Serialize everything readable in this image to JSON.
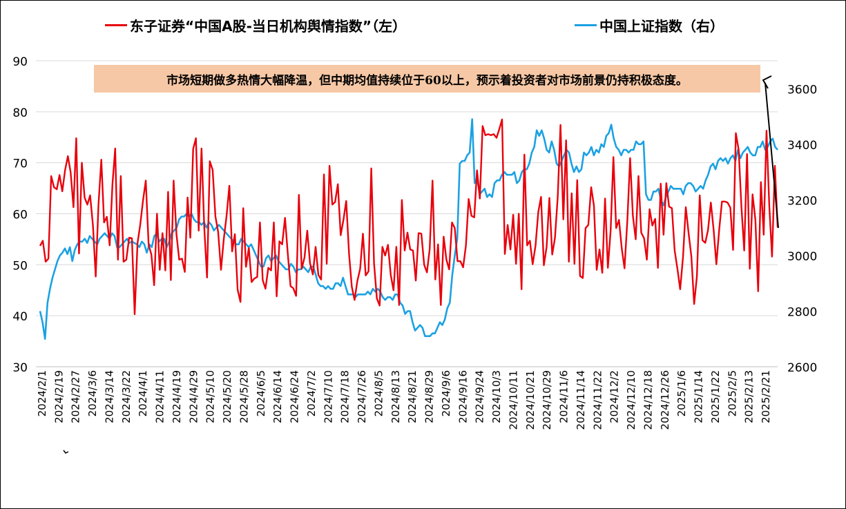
{
  "colors": {
    "series1": "#e8000b",
    "series2": "#1ba1e2",
    "background": "#ffffff",
    "annotation_bg": "#f6c8a6",
    "grid": "#d9d9d9"
  },
  "annotation": {
    "text": "市场短期做多热情大幅降温，但中期均值持续位于60以上，预示着投资者对市场前景仍持积极态度。"
  },
  "chart_data": {
    "type": "line",
    "title": "",
    "legend": {
      "placement": "top",
      "entries": [
        "东子证券“中国A股-当日机构舆情指数”（左）",
        "中国上证指数（右）"
      ]
    },
    "x_tick_labels": [
      "2024/2/1",
      "2024/2/19",
      "2024/2/27",
      "2024/3/6",
      "2024/3/14",
      "2024/3/22",
      "2024/4/1",
      "2024/4/11",
      "2024/4/19",
      "2024/4/29",
      "2024/5/10",
      "2024/5/20",
      "2024/5/28",
      "2024/6/5",
      "2024/6/14",
      "2024/6/24",
      "2024/7/2",
      "2024/7/10",
      "2024/7/18",
      "2024/7/26",
      "2024/8/5",
      "2024/8/13",
      "2024/8/21",
      "2024/8/29",
      "2024/9/6",
      "2024/9/16",
      "2024/9/24",
      "2024/10/3",
      "2024/10/11",
      "2024/10/21",
      "2024/10/29",
      "2024/11/6",
      "2024/11/14",
      "2024/11/22",
      "2024/12/2",
      "2024/12/10",
      "2024/12/18",
      "2024/12/26",
      "2025/1/6",
      "2025/1/14",
      "2025/1/22",
      "2025/2/5",
      "2025/2/13",
      "2025/2/21"
    ],
    "y_left": {
      "ticks": [
        30,
        40,
        50,
        60,
        70,
        80,
        90
      ],
      "range": [
        30,
        90
      ]
    },
    "y_right": {
      "ticks": [
        2600,
        2800,
        3000,
        3200,
        3400,
        3600
      ],
      "range": [
        2600,
        3700
      ]
    },
    "grid": true,
    "series": [
      {
        "name": "东子证券“中国A股-当日机构舆情指数”（左）",
        "axis": "left",
        "values": [
          53.7,
          54.7,
          50.6,
          51.2,
          67.4,
          65.2,
          64.8,
          67.6,
          64.4,
          68.6,
          71.3,
          68.1,
          61.3,
          74.8,
          52.2,
          70.0,
          63.2,
          61.8,
          63.6,
          57.7,
          47.7,
          61.8,
          70.6,
          58.3,
          59.4,
          53.8,
          65.7,
          72.8,
          51.0,
          67.4,
          50.6,
          51.0,
          55.3,
          55.2,
          40.3,
          54.2,
          57.9,
          62.6,
          66.5,
          53.9,
          52.0,
          46.0,
          60.0,
          49.0,
          56.2,
          48.9,
          64.3,
          47.0,
          66.5,
          56.0,
          51.0,
          51.2,
          48.6,
          63.2,
          55.3,
          72.7,
          74.8,
          56.7,
          72.8,
          57.2,
          47.5,
          70.3,
          68.6,
          59.5,
          56.4,
          49.0,
          55.0,
          59.5,
          65.5,
          52.6,
          56.0,
          45.1,
          42.7,
          61.1,
          49.6,
          53.3,
          46.6,
          47.3,
          47.6,
          58.3,
          47.0,
          45.3,
          49.4,
          48.9,
          58.3,
          43.8,
          54.6,
          54.0,
          59.2,
          52.2,
          45.8,
          45.4,
          43.9,
          63.7,
          49.2,
          51.4,
          56.7,
          50.3,
          48.1,
          53.5,
          48.0,
          47.1,
          67.7,
          50.2,
          69.4,
          61.8,
          62.3,
          65.8,
          55.8,
          58.8,
          62.5,
          52.2,
          45.7,
          43.1,
          46.8,
          49.2,
          56.1,
          47.9,
          48.7,
          68.9,
          50.3,
          43.4,
          42.0,
          53.5,
          51.8,
          53.9,
          48.0,
          45.0,
          53.5,
          42.1,
          62.7,
          52.8,
          56.3,
          53.0,
          52.8,
          46.9,
          56.2,
          56.1,
          50.0,
          48.5,
          53.1,
          66.5,
          47.1,
          54.0,
          42.1,
          55.5,
          51.0,
          49.1,
          58.3,
          57.2,
          50.7,
          50.7,
          49.5,
          53.7,
          62.9,
          59.6,
          59.3,
          68.5,
          63.0,
          77.2,
          75.4,
          75.6,
          75.4,
          75.6,
          74.9,
          76.6,
          78.5,
          52.1,
          57.8,
          53.0,
          59.8,
          50.2,
          60.0,
          45.2,
          71.6,
          53.8,
          54.7,
          50.1,
          53.7,
          60.3,
          63.3,
          49.9,
          53.5,
          63.1,
          52.0,
          55.3,
          63.3,
          77.4,
          58.9,
          74.4,
          50.6,
          64.0,
          50.2,
          66.6,
          47.8,
          47.4,
          57.2,
          57.8,
          65.2,
          61.6,
          49.0,
          53.0,
          48.4,
          63.0,
          49.4,
          56.7,
          71.1,
          57.2,
          58.8,
          53.2,
          49.3,
          58.7,
          70.9,
          59.6,
          55.0,
          67.4,
          56.3,
          55.2,
          51.0,
          60.9,
          57.7,
          59.0,
          49.4,
          65.9,
          55.9,
          66.0,
          61.4,
          61.1,
          52.8,
          49.2,
          45.2,
          51.5,
          61.3,
          56.3,
          51.6,
          42.3,
          47.7,
          63.6,
          54.8,
          54.3,
          56.8,
          62.2,
          56.9,
          50.1,
          56.9,
          62.4,
          62.4,
          62.2,
          61.2,
          52.9,
          75.8,
          72.5,
          61.3,
          52.8,
          71.7,
          49.2,
          63.8,
          58.8,
          44.8,
          66.2,
          55.9,
          76.3,
          61.6,
          51.6,
          69.4,
          57.3
        ]
      },
      {
        "name": "中国上证指数（右）",
        "axis": "right",
        "values": [
          2800,
          2760,
          2700,
          2830,
          2880,
          2920,
          2950,
          2980,
          3000,
          3010,
          3025,
          3005,
          3030,
          2980,
          3020,
          3040,
          3050,
          3050,
          3060,
          3045,
          3070,
          3060,
          3050,
          3040,
          3060,
          3070,
          3080,
          3070,
          3060,
          3080,
          3070,
          3030,
          3030,
          3040,
          3050,
          3060,
          3045,
          3050,
          3045,
          3040,
          3030,
          3050,
          3040,
          3010,
          3040,
          3030,
          3070,
          3080,
          3050,
          3060,
          3060,
          3030,
          3050,
          3080,
          3090,
          3100,
          3130,
          3140,
          3140,
          3150,
          3140,
          3150,
          3130,
          3120,
          3120,
          3110,
          3120,
          3100,
          3120,
          3110,
          3090,
          3100,
          3110,
          3100,
          3090,
          3080,
          3070,
          3060,
          3050,
          3040,
          3040,
          3060,
          3050,
          3040,
          3030,
          3040,
          3020,
          3000,
          2980,
          2960,
          2960,
          2990,
          3000,
          2980,
          2990,
          3000,
          2980,
          2970,
          2960,
          2950,
          2950,
          2970,
          2960,
          2940,
          2950,
          2950,
          2960,
          2950,
          2940,
          2960,
          2960,
          2930,
          2900,
          2890,
          2890,
          2880,
          2890,
          2880,
          2880,
          2900,
          2900,
          2890,
          2920,
          2890,
          2860,
          2860,
          2860,
          2850,
          2860,
          2860,
          2860,
          2860,
          2870,
          2860,
          2880,
          2870,
          2880,
          2870,
          2850,
          2840,
          2850,
          2850,
          2840,
          2860,
          2860,
          2830,
          2820,
          2790,
          2800,
          2800,
          2760,
          2730,
          2740,
          2750,
          2740,
          2710,
          2710,
          2710,
          2720,
          2720,
          2740,
          2760,
          2750,
          2770,
          2810,
          2830,
          2930,
          3000,
          3060,
          3330,
          3340,
          3340,
          3360,
          3370,
          3490,
          3260,
          3280,
          3220,
          3230,
          3240,
          3210,
          3220,
          3210,
          3260,
          3270,
          3270,
          3290,
          3300,
          3290,
          3290,
          3290,
          3300,
          3260,
          3270,
          3300,
          3310,
          3310,
          3330,
          3370,
          3390,
          3450,
          3430,
          3450,
          3420,
          3380,
          3370,
          3410,
          3380,
          3330,
          3320,
          3340,
          3360,
          3380,
          3370,
          3330,
          3300,
          3320,
          3300,
          3310,
          3370,
          3360,
          3370,
          3390,
          3360,
          3380,
          3370,
          3400,
          3390,
          3430,
          3440,
          3470,
          3420,
          3390,
          3380,
          3360,
          3380,
          3380,
          3370,
          3380,
          3380,
          3410,
          3400,
          3400,
          3410,
          3220,
          3200,
          3200,
          3230,
          3230,
          3240,
          3200,
          3180,
          3210,
          3230,
          3250,
          3240,
          3240,
          3240,
          3240,
          3220,
          3250,
          3260,
          3260,
          3250,
          3230,
          3240,
          3250,
          3240,
          3270,
          3290,
          3320,
          3330,
          3310,
          3340,
          3350,
          3340,
          3350,
          3330,
          3350,
          3360,
          3340,
          3380,
          3350,
          3370,
          3380,
          3390,
          3370,
          3360,
          3360,
          3390,
          3390,
          3410,
          3380,
          3390,
          3410,
          3420,
          3390,
          3380
        ]
      }
    ]
  }
}
